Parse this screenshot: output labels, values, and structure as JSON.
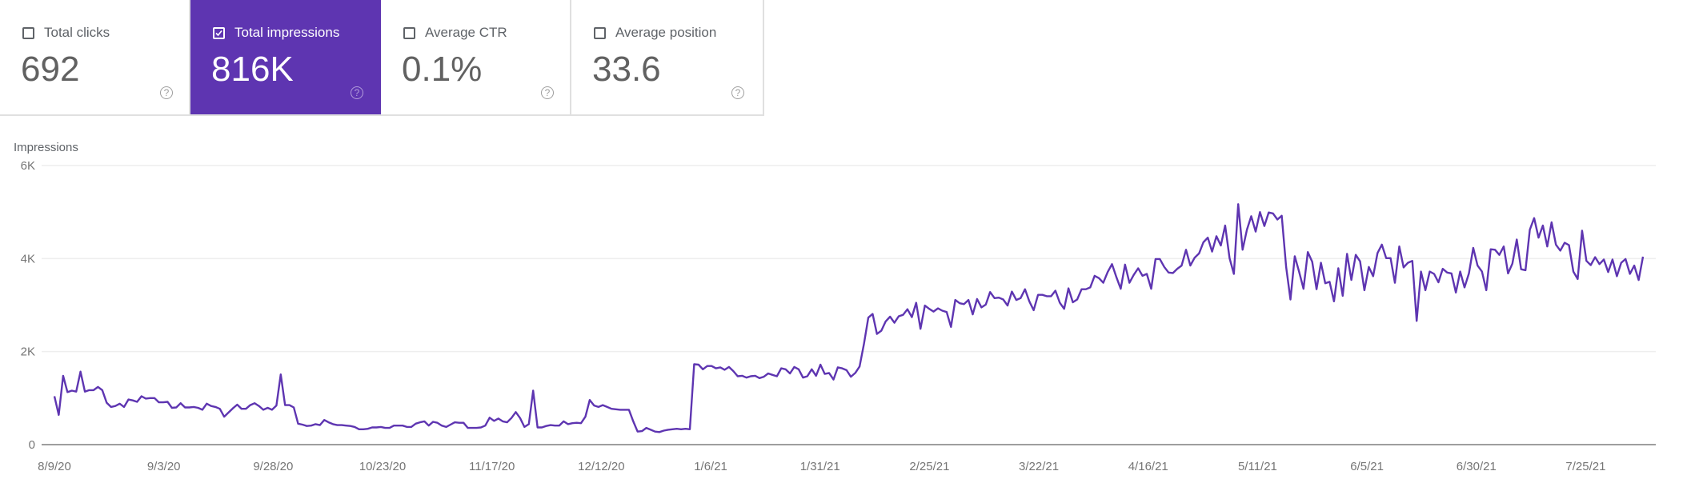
{
  "metrics": [
    {
      "label": "Total clicks",
      "value": "692",
      "selected": false,
      "help_icon": "help-circle-icon"
    },
    {
      "label": "Total impressions",
      "value": "816K",
      "selected": true,
      "help_icon": "help-circle-icon"
    },
    {
      "label": "Average CTR",
      "value": "0.1%",
      "selected": false,
      "help_icon": "help-circle-icon"
    },
    {
      "label": "Average position",
      "value": "33.6",
      "selected": false,
      "help_icon": "help-circle-icon"
    }
  ],
  "colors": {
    "accent": "#5e35b1",
    "line": "#5e35b1",
    "grid": "#eeeeee",
    "axis": "#9e9e9e",
    "text": "#757575"
  },
  "chart_data": {
    "type": "line",
    "title": "",
    "ylabel": "Impressions",
    "xlabel": "",
    "ylim": [
      0,
      6000
    ],
    "yticks": [
      "0",
      "2K",
      "4K",
      "6K"
    ],
    "ytick_values": [
      0,
      2000,
      4000,
      6000
    ],
    "xticks": [
      "8/9/20",
      "9/3/20",
      "9/28/20",
      "10/23/20",
      "11/17/20",
      "12/12/20",
      "1/6/21",
      "1/31/21",
      "2/25/21",
      "3/22/21",
      "4/16/21",
      "5/11/21",
      "6/5/21",
      "6/30/21",
      "7/25/21"
    ],
    "grid": true,
    "legend": null,
    "x_start": "8/9/20",
    "x_interval_days": 1,
    "series": [
      {
        "name": "Impressions",
        "values_k": [
          1.04,
          0.64,
          1.48,
          1.13,
          1.16,
          1.14,
          1.57,
          1.14,
          1.17,
          1.17,
          1.24,
          1.17,
          0.9,
          0.81,
          0.83,
          0.88,
          0.81,
          0.97,
          0.95,
          0.92,
          1.04,
          0.99,
          1.0,
          1.0,
          0.91,
          0.91,
          0.92,
          0.79,
          0.8,
          0.89,
          0.8,
          0.8,
          0.81,
          0.79,
          0.75,
          0.88,
          0.83,
          0.81,
          0.77,
          0.6,
          0.69,
          0.78,
          0.86,
          0.77,
          0.77,
          0.85,
          0.89,
          0.83,
          0.75,
          0.79,
          0.75,
          0.84,
          1.51,
          0.85,
          0.85,
          0.8,
          0.45,
          0.43,
          0.4,
          0.41,
          0.44,
          0.42,
          0.53,
          0.48,
          0.44,
          0.42,
          0.42,
          0.41,
          0.4,
          0.38,
          0.33,
          0.33,
          0.34,
          0.37,
          0.37,
          0.38,
          0.36,
          0.36,
          0.41,
          0.41,
          0.41,
          0.38,
          0.38,
          0.45,
          0.48,
          0.5,
          0.41,
          0.49,
          0.47,
          0.41,
          0.38,
          0.43,
          0.48,
          0.47,
          0.47,
          0.36,
          0.36,
          0.36,
          0.37,
          0.41,
          0.58,
          0.51,
          0.56,
          0.5,
          0.48,
          0.57,
          0.7,
          0.57,
          0.38,
          0.44,
          1.16,
          0.37,
          0.37,
          0.4,
          0.42,
          0.41,
          0.41,
          0.5,
          0.44,
          0.46,
          0.47,
          0.46,
          0.6,
          0.96,
          0.84,
          0.81,
          0.85,
          0.81,
          0.77,
          0.76,
          0.75,
          0.75,
          0.75,
          0.5,
          0.28,
          0.29,
          0.36,
          0.32,
          0.28,
          0.27,
          0.3,
          0.32,
          0.33,
          0.34,
          0.33,
          0.34,
          0.33,
          1.73,
          1.72,
          1.62,
          1.69,
          1.69,
          1.64,
          1.66,
          1.61,
          1.67,
          1.58,
          1.47,
          1.48,
          1.44,
          1.47,
          1.48,
          1.43,
          1.46,
          1.53,
          1.5,
          1.47,
          1.64,
          1.62,
          1.53,
          1.67,
          1.62,
          1.44,
          1.47,
          1.62,
          1.48,
          1.72,
          1.52,
          1.54,
          1.4,
          1.66,
          1.64,
          1.6,
          1.46,
          1.54,
          1.68,
          2.16,
          2.73,
          2.81,
          2.38,
          2.45,
          2.65,
          2.75,
          2.62,
          2.76,
          2.79,
          2.91,
          2.74,
          3.05,
          2.49,
          2.99,
          2.92,
          2.86,
          2.93,
          2.88,
          2.85,
          2.53,
          3.11,
          3.04,
          3.02,
          3.11,
          2.8,
          3.13,
          2.95,
          3.01,
          3.28,
          3.15,
          3.16,
          3.12,
          2.99,
          3.29,
          3.11,
          3.15,
          3.34,
          3.08,
          2.89,
          3.22,
          3.22,
          3.19,
          3.19,
          3.31,
          3.05,
          2.92,
          3.36,
          3.06,
          3.12,
          3.34,
          3.34,
          3.38,
          3.63,
          3.58,
          3.48,
          3.71,
          3.88,
          3.6,
          3.35,
          3.87,
          3.48,
          3.65,
          3.79,
          3.63,
          3.67,
          3.35,
          3.99,
          3.99,
          3.82,
          3.7,
          3.69,
          3.78,
          3.85,
          4.19,
          3.85,
          4.02,
          4.11,
          4.35,
          4.45,
          4.15,
          4.48,
          4.28,
          4.71,
          4.01,
          3.67,
          5.17,
          4.19,
          4.62,
          4.91,
          4.58,
          5.0,
          4.7,
          4.99,
          4.97,
          4.84,
          4.92,
          3.82,
          3.12,
          4.05,
          3.71,
          3.35,
          4.14,
          3.93,
          3.34,
          3.91,
          3.47,
          3.5,
          3.08,
          3.79,
          3.2,
          4.1,
          3.54,
          4.08,
          3.94,
          3.32,
          3.82,
          3.62,
          4.12,
          4.3,
          4.01,
          4.01,
          3.48,
          4.26,
          3.81,
          3.91,
          3.95,
          2.66,
          3.72,
          3.32,
          3.72,
          3.67,
          3.49,
          3.78,
          3.7,
          3.68,
          3.27,
          3.72,
          3.38,
          3.68,
          4.23,
          3.85,
          3.72,
          3.32,
          4.2,
          4.19,
          4.08,
          4.26,
          3.68,
          3.89,
          4.41,
          3.77,
          3.75,
          4.62,
          4.87,
          4.45,
          4.71,
          4.26,
          4.78,
          4.3,
          4.17,
          4.34,
          4.29,
          3.72,
          3.56,
          4.6,
          3.95,
          3.86,
          4.03,
          3.88,
          3.98,
          3.71,
          3.98,
          3.62,
          3.91,
          3.99,
          3.67,
          3.85,
          3.54,
          4.04
        ]
      }
    ]
  }
}
